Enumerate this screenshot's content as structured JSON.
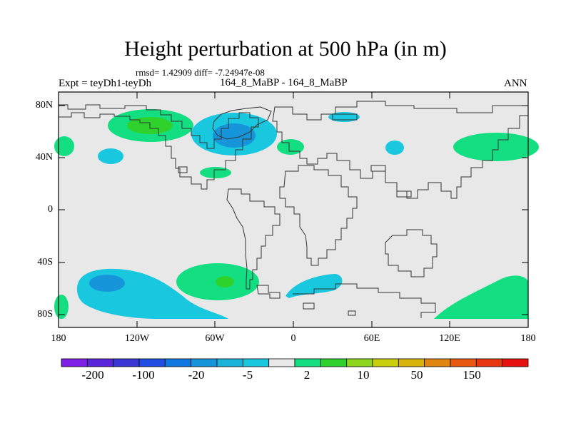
{
  "title": "Height perturbation at 500 hPa (in m)",
  "stats": "rmsd= 1.42909 diff= -7.24947e-08",
  "left_label": "Expt = teyDh1-teyDh",
  "center_label": "164_8_MaBP - 164_8_MaBP",
  "right_label": "ANN",
  "y_axis": {
    "ticks": [
      "80N",
      "40N",
      "0",
      "40S",
      "80S"
    ]
  },
  "x_axis": {
    "ticks": [
      "180",
      "120W",
      "60W",
      "0",
      "60E",
      "120E",
      "180"
    ]
  },
  "colorbar": {
    "colors": [
      "#7f1fe6",
      "#5a25d8",
      "#3a36d6",
      "#1f4ee0",
      "#1177e0",
      "#1795db",
      "#19b3d9",
      "#19c8df",
      "#e8e8e8",
      "#14de82",
      "#2fd12c",
      "#8ed51d",
      "#c9cf0c",
      "#d8b40a",
      "#e0850f",
      "#e6580f",
      "#e8360f",
      "#e61010"
    ],
    "labels": [
      "-200",
      "-100",
      "-20",
      "-5",
      "2",
      "10",
      "50",
      "150"
    ]
  }
}
